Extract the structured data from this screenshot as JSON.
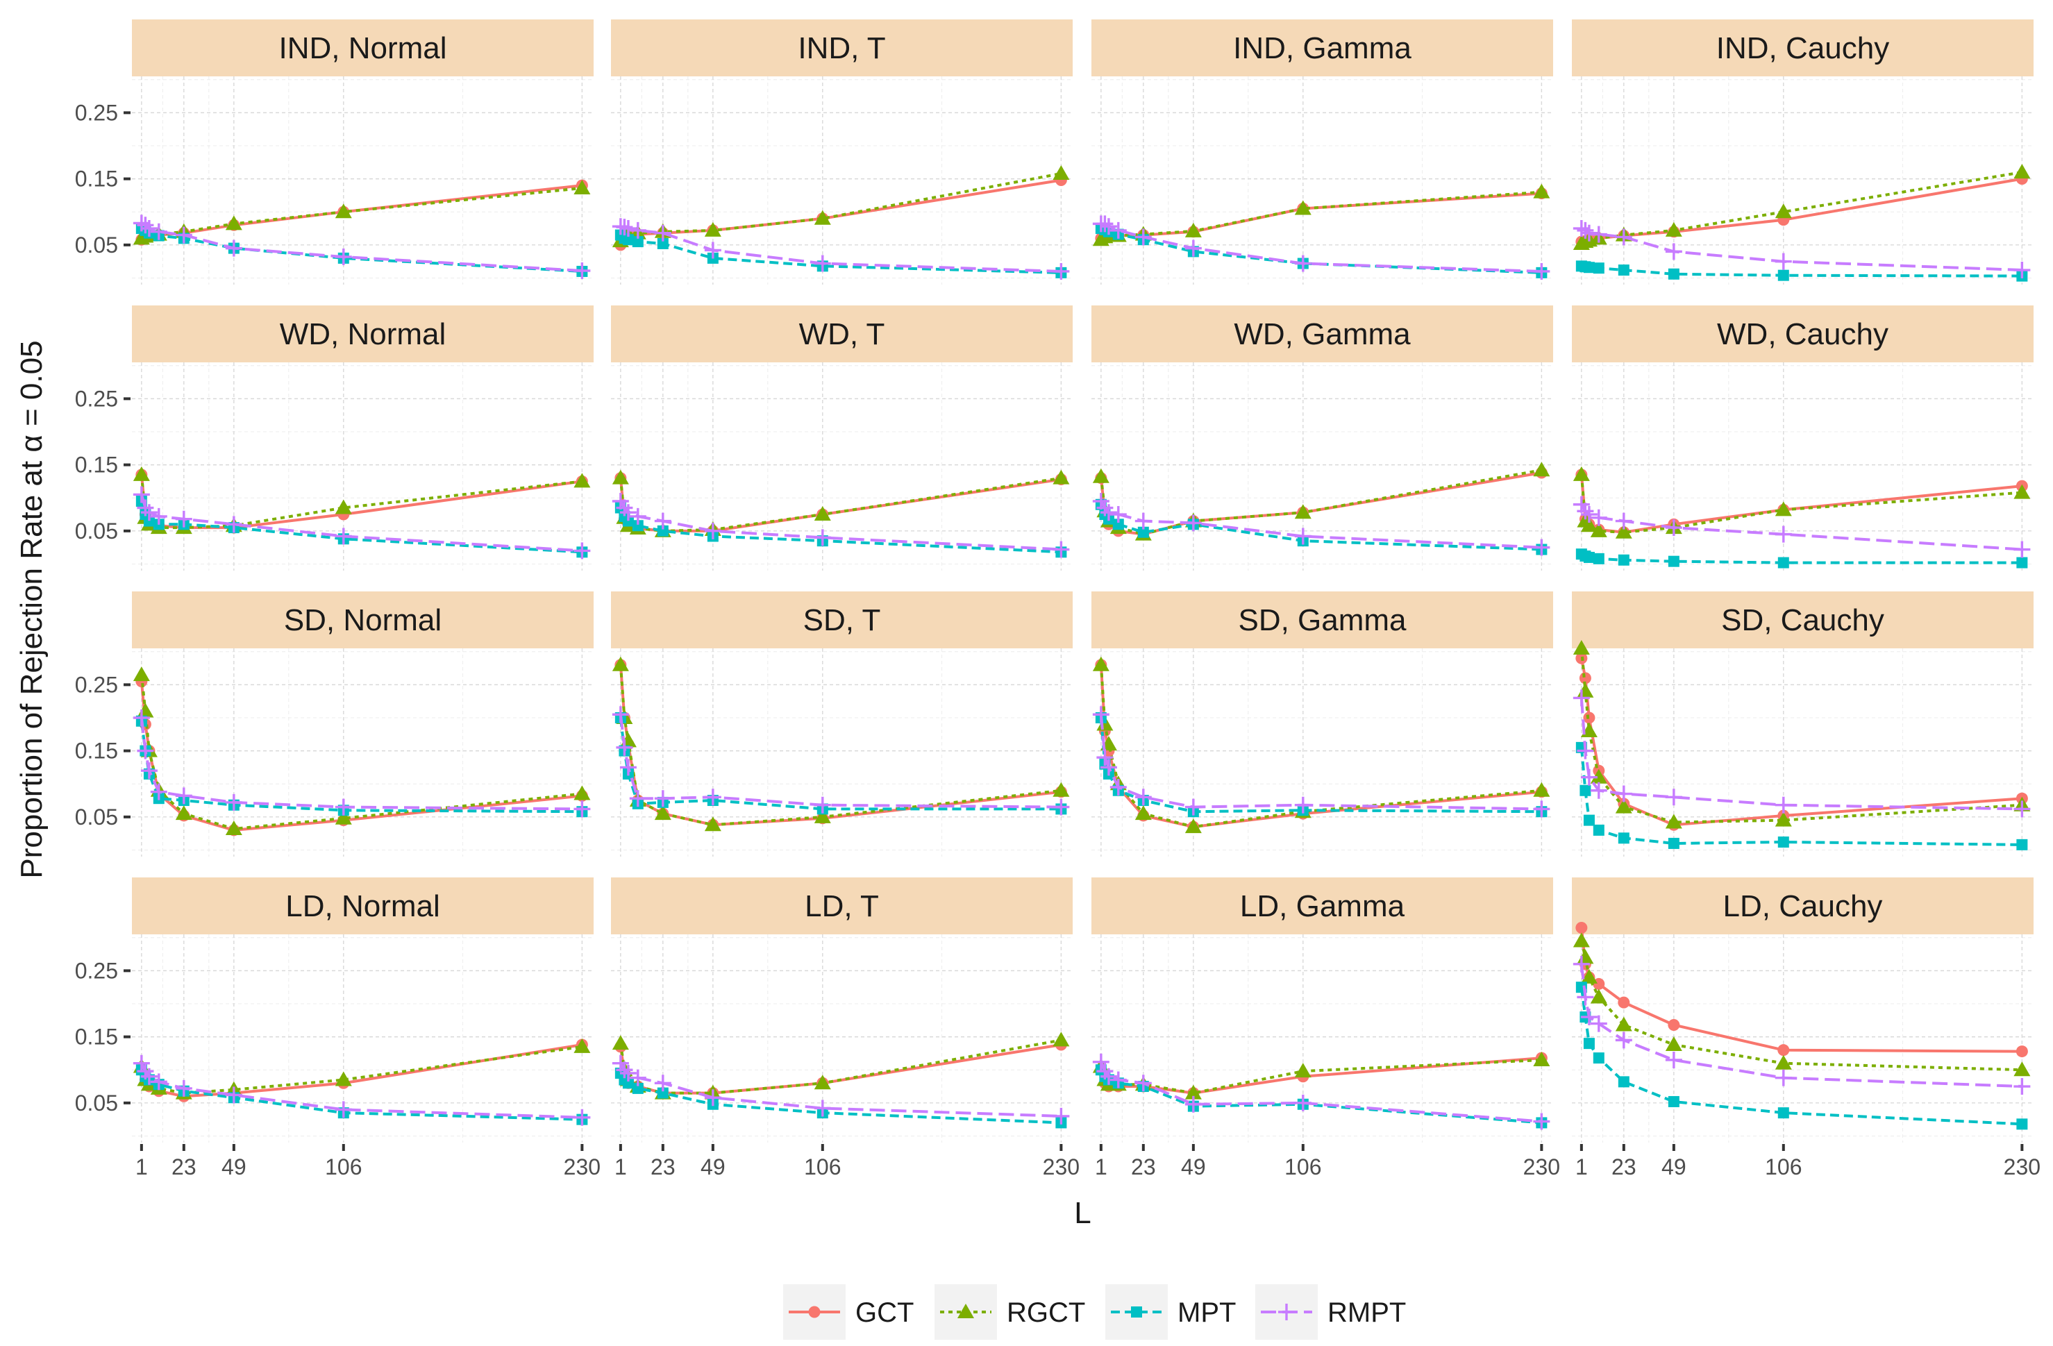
{
  "chart_data": {
    "type": "line",
    "facet_layout": {
      "rows": 4,
      "cols": 4
    },
    "x_ticks": [
      1,
      23,
      49,
      106,
      230
    ],
    "x_data": [
      1,
      3,
      5,
      10,
      23,
      49,
      106,
      230
    ],
    "xlim": [
      -4,
      236
    ],
    "y_ticks": [
      0.05,
      0.15,
      0.25
    ],
    "y_tick_labels": [
      "0.05",
      "0.15",
      "0.25"
    ],
    "ylim": [
      -0.01,
      0.305
    ],
    "xlabel": "L",
    "ylabel": "Proportion of Rejection Rate at α = 0.05",
    "legend": {
      "position": "bottom",
      "entries": [
        "GCT",
        "RGCT",
        "MPT",
        "RMPT"
      ]
    },
    "series_styles": [
      {
        "name": "GCT",
        "color": "#f8766d",
        "dash": "",
        "shape": "circle"
      },
      {
        "name": "RGCT",
        "color": "#7cae00",
        "dash": "6 6",
        "shape": "triangle"
      },
      {
        "name": "MPT",
        "color": "#00bfc4",
        "dash": "13 7",
        "shape": "square"
      },
      {
        "name": "RMPT",
        "color": "#c77cff",
        "dash": "22 9",
        "shape": "plus"
      }
    ],
    "panels": [
      {
        "title": "IND, Normal",
        "series": [
          {
            "name": "GCT",
            "values": [
              0.058,
              0.062,
              0.064,
              0.065,
              0.068,
              0.08,
              0.1,
              0.14
            ]
          },
          {
            "name": "RGCT",
            "values": [
              0.06,
              0.063,
              0.065,
              0.066,
              0.07,
              0.082,
              0.1,
              0.136
            ]
          },
          {
            "name": "MPT",
            "values": [
              0.075,
              0.072,
              0.068,
              0.064,
              0.06,
              0.045,
              0.03,
              0.01
            ]
          },
          {
            "name": "RMPT",
            "values": [
              0.083,
              0.08,
              0.075,
              0.07,
              0.065,
              0.045,
              0.032,
              0.011
            ]
          }
        ]
      },
      {
        "title": "IND, T",
        "series": [
          {
            "name": "GCT",
            "values": [
              0.05,
              0.06,
              0.064,
              0.066,
              0.068,
              0.072,
              0.09,
              0.148
            ]
          },
          {
            "name": "RGCT",
            "values": [
              0.056,
              0.063,
              0.066,
              0.068,
              0.07,
              0.072,
              0.09,
              0.158
            ]
          },
          {
            "name": "MPT",
            "values": [
              0.065,
              0.06,
              0.058,
              0.055,
              0.052,
              0.03,
              0.018,
              0.008
            ]
          },
          {
            "name": "RMPT",
            "values": [
              0.078,
              0.077,
              0.075,
              0.072,
              0.068,
              0.042,
              0.022,
              0.01
            ]
          }
        ]
      },
      {
        "title": "IND, Gamma",
        "series": [
          {
            "name": "GCT",
            "values": [
              0.06,
              0.063,
              0.065,
              0.064,
              0.065,
              0.07,
              0.105,
              0.128
            ]
          },
          {
            "name": "RGCT",
            "values": [
              0.058,
              0.062,
              0.064,
              0.064,
              0.066,
              0.071,
              0.105,
              0.13
            ]
          },
          {
            "name": "MPT",
            "values": [
              0.075,
              0.073,
              0.07,
              0.066,
              0.058,
              0.04,
              0.022,
              0.008
            ]
          },
          {
            "name": "RMPT",
            "values": [
              0.082,
              0.082,
              0.078,
              0.072,
              0.062,
              0.045,
              0.022,
              0.01
            ]
          }
        ]
      },
      {
        "title": "IND, Cauchy",
        "series": [
          {
            "name": "GCT",
            "values": [
              0.055,
              0.056,
              0.058,
              0.06,
              0.064,
              0.07,
              0.088,
              0.15
            ]
          },
          {
            "name": "RGCT",
            "values": [
              0.052,
              0.055,
              0.057,
              0.06,
              0.065,
              0.072,
              0.1,
              0.16
            ]
          },
          {
            "name": "MPT",
            "values": [
              0.018,
              0.017,
              0.016,
              0.015,
              0.012,
              0.006,
              0.004,
              0.003
            ]
          },
          {
            "name": "RMPT",
            "values": [
              0.075,
              0.072,
              0.068,
              0.066,
              0.062,
              0.04,
              0.025,
              0.012
            ]
          }
        ]
      },
      {
        "title": "WD, Normal",
        "series": [
          {
            "name": "GCT",
            "values": [
              0.135,
              0.075,
              0.065,
              0.058,
              0.055,
              0.055,
              0.075,
              0.125
            ]
          },
          {
            "name": "RGCT",
            "values": [
              0.135,
              0.07,
              0.06,
              0.055,
              0.055,
              0.058,
              0.085,
              0.125
            ]
          },
          {
            "name": "MPT",
            "values": [
              0.095,
              0.075,
              0.065,
              0.06,
              0.06,
              0.055,
              0.038,
              0.018
            ]
          },
          {
            "name": "RMPT",
            "values": [
              0.105,
              0.085,
              0.078,
              0.072,
              0.068,
              0.06,
              0.042,
              0.02
            ]
          }
        ]
      },
      {
        "title": "WD, T",
        "series": [
          {
            "name": "GCT",
            "values": [
              0.13,
              0.068,
              0.06,
              0.054,
              0.05,
              0.05,
              0.075,
              0.128
            ]
          },
          {
            "name": "RGCT",
            "values": [
              0.13,
              0.07,
              0.058,
              0.054,
              0.05,
              0.052,
              0.075,
              0.13
            ]
          },
          {
            "name": "MPT",
            "values": [
              0.085,
              0.072,
              0.065,
              0.058,
              0.05,
              0.042,
              0.035,
              0.018
            ]
          },
          {
            "name": "RMPT",
            "values": [
              0.095,
              0.085,
              0.078,
              0.072,
              0.065,
              0.05,
              0.04,
              0.022
            ]
          }
        ]
      },
      {
        "title": "WD, Gamma",
        "series": [
          {
            "name": "GCT",
            "values": [
              0.13,
              0.075,
              0.06,
              0.05,
              0.045,
              0.065,
              0.078,
              0.138
            ]
          },
          {
            "name": "RGCT",
            "values": [
              0.132,
              0.08,
              0.065,
              0.055,
              0.045,
              0.065,
              0.078,
              0.142
            ]
          },
          {
            "name": "MPT",
            "values": [
              0.09,
              0.075,
              0.068,
              0.06,
              0.048,
              0.06,
              0.035,
              0.022
            ]
          },
          {
            "name": "RMPT",
            "values": [
              0.095,
              0.085,
              0.078,
              0.075,
              0.065,
              0.062,
              0.042,
              0.025
            ]
          }
        ]
      },
      {
        "title": "WD, Cauchy",
        "series": [
          {
            "name": "GCT",
            "values": [
              0.135,
              0.068,
              0.06,
              0.052,
              0.048,
              0.06,
              0.082,
              0.118
            ]
          },
          {
            "name": "RGCT",
            "values": [
              0.135,
              0.065,
              0.058,
              0.05,
              0.048,
              0.055,
              0.082,
              0.108
            ]
          },
          {
            "name": "MPT",
            "values": [
              0.015,
              0.012,
              0.01,
              0.008,
              0.006,
              0.004,
              0.002,
              0.002
            ]
          },
          {
            "name": "RMPT",
            "values": [
              0.09,
              0.08,
              0.075,
              0.07,
              0.065,
              0.055,
              0.045,
              0.022
            ]
          }
        ]
      },
      {
        "title": "SD, Normal",
        "series": [
          {
            "name": "GCT",
            "values": [
              0.255,
              0.19,
              0.15,
              0.085,
              0.052,
              0.03,
              0.045,
              0.082
            ]
          },
          {
            "name": "RGCT",
            "values": [
              0.265,
              0.21,
              0.15,
              0.09,
              0.055,
              0.032,
              0.048,
              0.085
            ]
          },
          {
            "name": "MPT",
            "values": [
              0.195,
              0.15,
              0.115,
              0.078,
              0.075,
              0.068,
              0.06,
              0.058
            ]
          },
          {
            "name": "RMPT",
            "values": [
              0.2,
              0.15,
              0.12,
              0.088,
              0.082,
              0.072,
              0.065,
              0.062
            ]
          }
        ]
      },
      {
        "title": "SD, T",
        "series": [
          {
            "name": "GCT",
            "values": [
              0.28,
              0.2,
              0.16,
              0.075,
              0.055,
              0.038,
              0.048,
              0.088
            ]
          },
          {
            "name": "RGCT",
            "values": [
              0.28,
              0.2,
              0.165,
              0.075,
              0.055,
              0.038,
              0.05,
              0.09
            ]
          },
          {
            "name": "MPT",
            "values": [
              0.2,
              0.15,
              0.115,
              0.07,
              0.072,
              0.075,
              0.062,
              0.062
            ]
          },
          {
            "name": "RMPT",
            "values": [
              0.205,
              0.155,
              0.125,
              0.078,
              0.078,
              0.08,
              0.068,
              0.065
            ]
          }
        ]
      },
      {
        "title": "SD, Gamma",
        "series": [
          {
            "name": "GCT",
            "values": [
              0.28,
              0.18,
              0.15,
              0.095,
              0.052,
              0.035,
              0.055,
              0.088
            ]
          },
          {
            "name": "RGCT",
            "values": [
              0.28,
              0.19,
              0.16,
              0.1,
              0.055,
              0.035,
              0.058,
              0.09
            ]
          },
          {
            "name": "MPT",
            "values": [
              0.2,
              0.13,
              0.115,
              0.09,
              0.075,
              0.058,
              0.06,
              0.058
            ]
          },
          {
            "name": "RMPT",
            "values": [
              0.205,
              0.14,
              0.125,
              0.095,
              0.08,
              0.065,
              0.068,
              0.062
            ]
          }
        ]
      },
      {
        "title": "SD, Cauchy",
        "series": [
          {
            "name": "GCT",
            "values": [
              0.29,
              0.26,
              0.2,
              0.12,
              0.07,
              0.038,
              0.052,
              0.078
            ]
          },
          {
            "name": "RGCT",
            "values": [
              0.305,
              0.24,
              0.18,
              0.11,
              0.065,
              0.042,
              0.045,
              0.068
            ]
          },
          {
            "name": "MPT",
            "values": [
              0.155,
              0.09,
              0.045,
              0.03,
              0.018,
              0.01,
              0.012,
              0.008
            ]
          },
          {
            "name": "RMPT",
            "values": [
              0.23,
              0.15,
              0.11,
              0.09,
              0.085,
              0.08,
              0.068,
              0.062
            ]
          }
        ]
      },
      {
        "title": "LD, Normal",
        "series": [
          {
            "name": "GCT",
            "values": [
              0.1,
              0.085,
              0.075,
              0.068,
              0.06,
              0.065,
              0.08,
              0.138
            ]
          },
          {
            "name": "RGCT",
            "values": [
              0.105,
              0.085,
              0.078,
              0.072,
              0.065,
              0.07,
              0.085,
              0.135
            ]
          },
          {
            "name": "MPT",
            "values": [
              0.1,
              0.09,
              0.085,
              0.078,
              0.068,
              0.058,
              0.035,
              0.025
            ]
          },
          {
            "name": "RMPT",
            "values": [
              0.11,
              0.098,
              0.09,
              0.082,
              0.072,
              0.062,
              0.04,
              0.028
            ]
          }
        ]
      },
      {
        "title": "LD, T",
        "series": [
          {
            "name": "GCT",
            "values": [
              0.135,
              0.095,
              0.08,
              0.075,
              0.065,
              0.065,
              0.08,
              0.138
            ]
          },
          {
            "name": "RGCT",
            "values": [
              0.14,
              0.1,
              0.085,
              0.075,
              0.065,
              0.065,
              0.08,
              0.145
            ]
          },
          {
            "name": "MPT",
            "values": [
              0.095,
              0.085,
              0.08,
              0.072,
              0.065,
              0.048,
              0.035,
              0.02
            ]
          },
          {
            "name": "RMPT",
            "values": [
              0.11,
              0.1,
              0.095,
              0.088,
              0.08,
              0.058,
              0.042,
              0.03
            ]
          }
        ]
      },
      {
        "title": "LD, Gamma",
        "series": [
          {
            "name": "GCT",
            "values": [
              0.1,
              0.08,
              0.075,
              0.075,
              0.075,
              0.065,
              0.09,
              0.118
            ]
          },
          {
            "name": "RGCT",
            "values": [
              0.105,
              0.085,
              0.078,
              0.078,
              0.078,
              0.065,
              0.098,
              0.115
            ]
          },
          {
            "name": "MPT",
            "values": [
              0.1,
              0.09,
              0.085,
              0.08,
              0.075,
              0.045,
              0.048,
              0.02
            ]
          },
          {
            "name": "RMPT",
            "values": [
              0.112,
              0.098,
              0.09,
              0.085,
              0.08,
              0.048,
              0.05,
              0.022
            ]
          }
        ]
      },
      {
        "title": "LD, Cauchy",
        "series": [
          {
            "name": "GCT",
            "values": [
              0.315,
              0.26,
              0.24,
              0.23,
              0.202,
              0.168,
              0.13,
              0.128
            ]
          },
          {
            "name": "RGCT",
            "values": [
              0.295,
              0.27,
              0.24,
              0.21,
              0.168,
              0.138,
              0.11,
              0.1
            ]
          },
          {
            "name": "MPT",
            "values": [
              0.225,
              0.18,
              0.14,
              0.118,
              0.082,
              0.052,
              0.035,
              0.018
            ]
          },
          {
            "name": "RMPT",
            "values": [
              0.26,
              0.21,
              0.18,
              0.17,
              0.145,
              0.115,
              0.088,
              0.075
            ]
          }
        ]
      }
    ]
  }
}
